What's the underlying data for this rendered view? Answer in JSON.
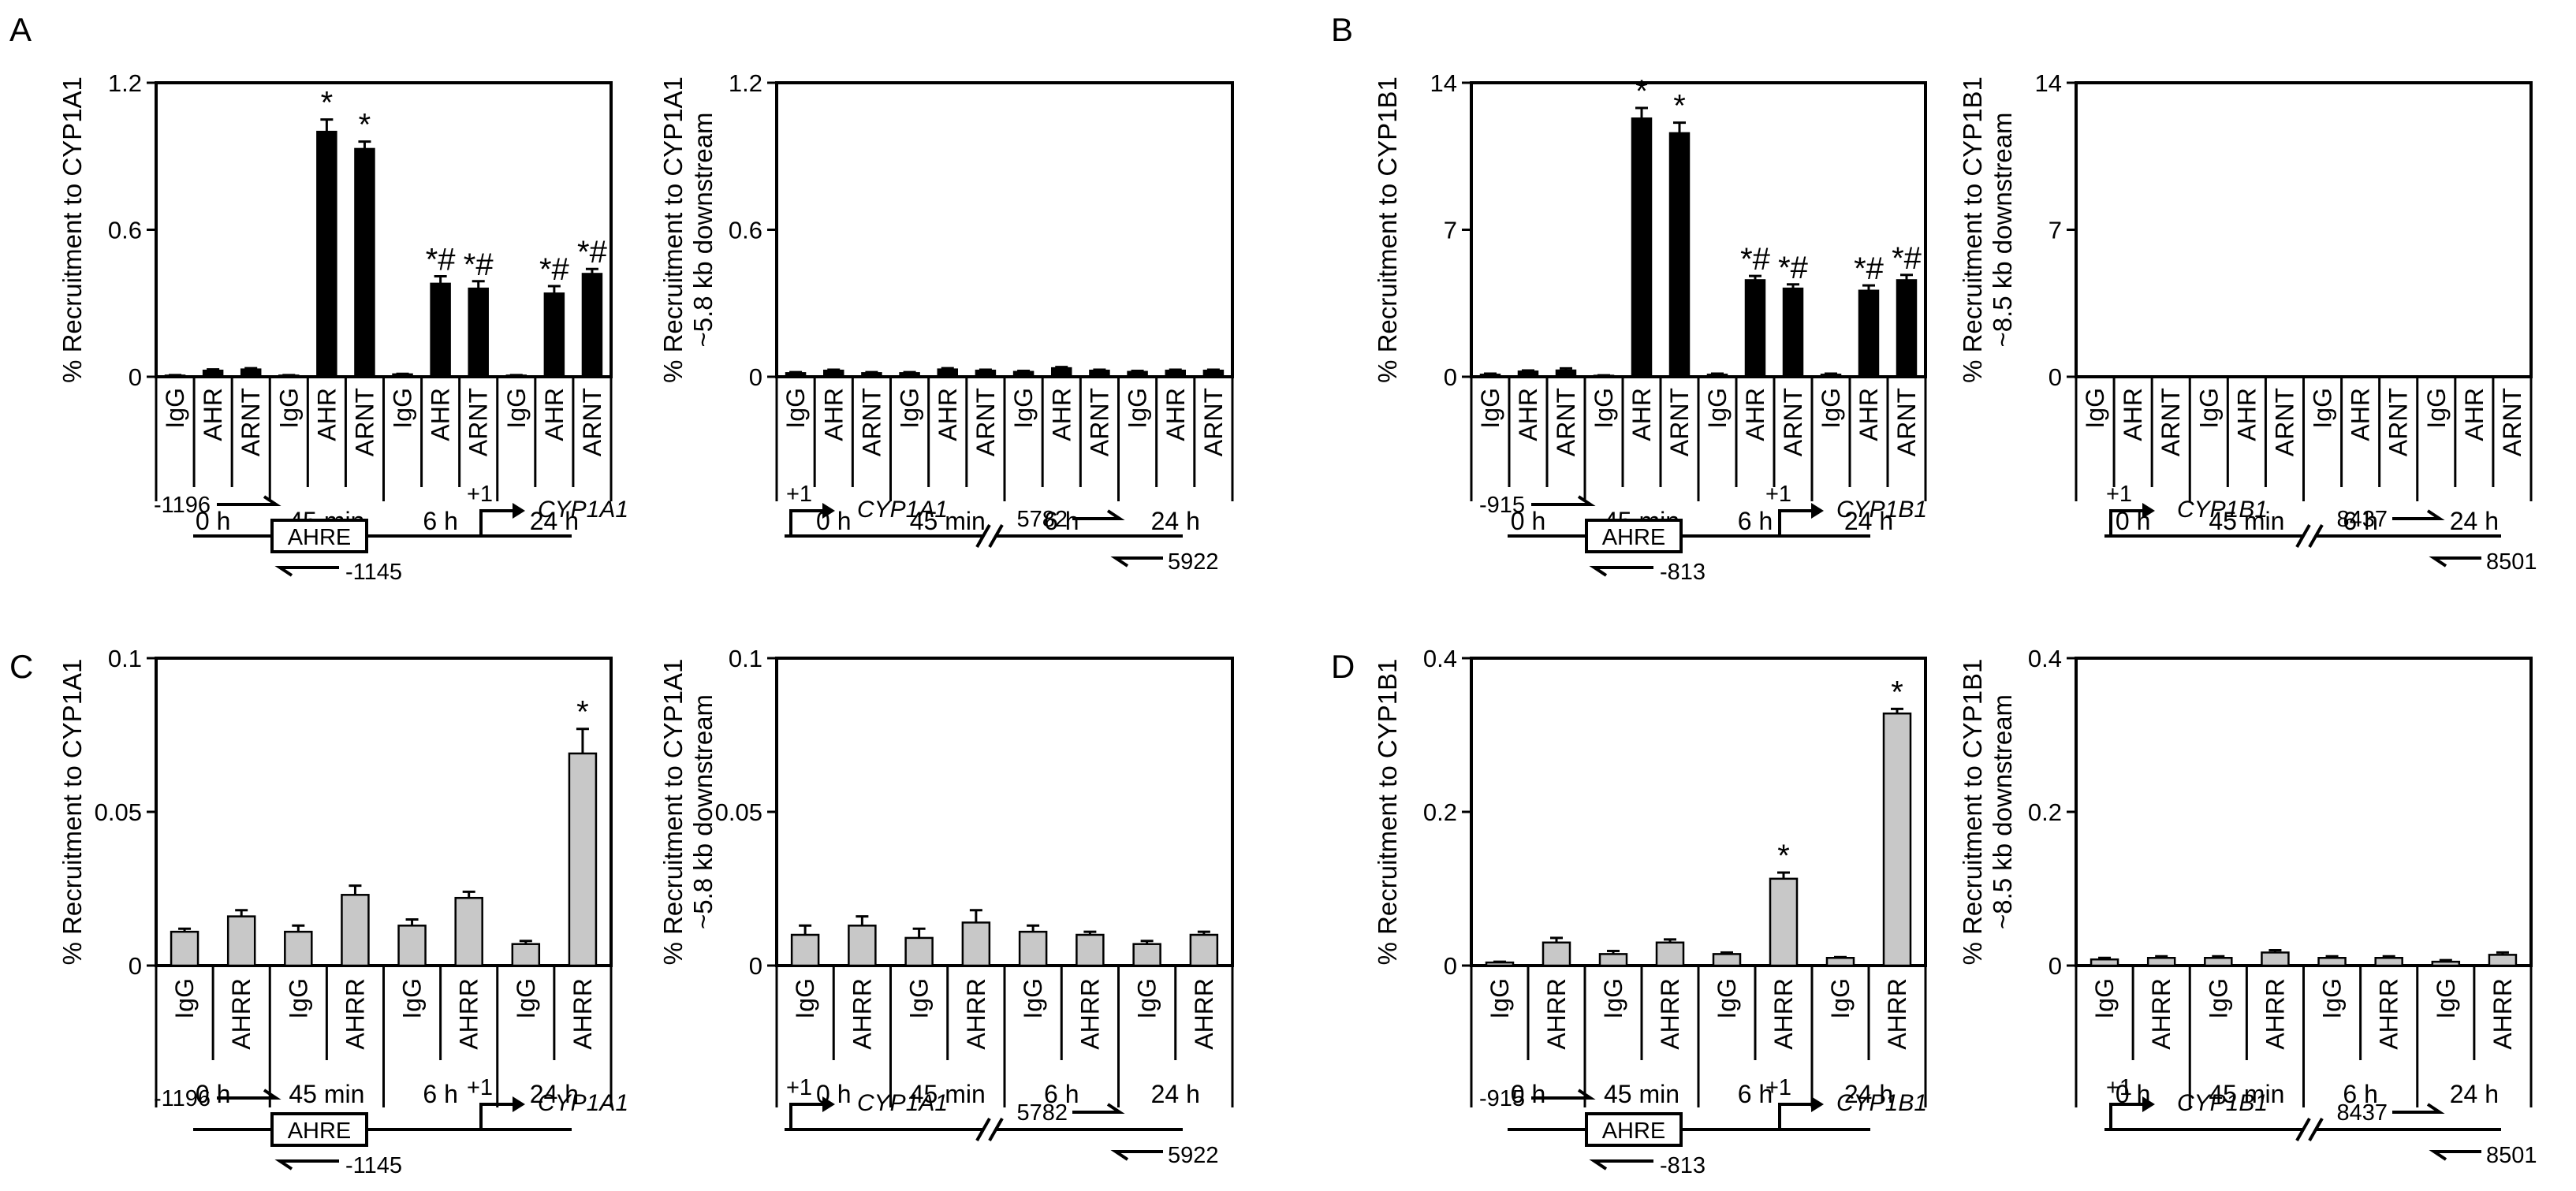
{
  "panels": [
    {
      "letter": "A",
      "key": "A"
    },
    {
      "letter": "B",
      "key": "B"
    },
    {
      "letter": "C",
      "key": "C"
    },
    {
      "letter": "D",
      "key": "D"
    }
  ],
  "chart_data": [
    {
      "id": "A1",
      "type": "bar",
      "panel": "A",
      "ylabel": "% Recruitment to CYP1A1",
      "ylim": [
        0,
        1.2
      ],
      "yticks": [
        0,
        0.6,
        1.2
      ],
      "ytick_labels": [
        "0",
        "0.6",
        "1.2"
      ],
      "groups": [
        "0 h",
        "45 min",
        "6 h",
        "24 h"
      ],
      "categories": [
        "IgG",
        "AHR",
        "ARNT"
      ],
      "values": [
        [
          0.005,
          0.025,
          0.03
        ],
        [
          0.005,
          1.0,
          0.93
        ],
        [
          0.01,
          0.38,
          0.36
        ],
        [
          0.005,
          0.34,
          0.42
        ]
      ],
      "errors": [
        [
          0.002,
          0.005,
          0.005
        ],
        [
          0.002,
          0.05,
          0.03
        ],
        [
          0.002,
          0.03,
          0.03
        ],
        [
          0.002,
          0.03,
          0.02
        ]
      ],
      "annotations": [
        [
          "",
          "",
          ""
        ],
        [
          "",
          "*",
          "*"
        ],
        [
          "",
          "*#",
          "*#"
        ],
        [
          "",
          "*#",
          "*#"
        ]
      ],
      "bar_color": "#000000",
      "diagram": {
        "primer_fwd": "-1196",
        "element": "AHRE",
        "primer_rev": "-1145",
        "tss": "+1",
        "gene": "CYP1A1"
      }
    },
    {
      "id": "A2",
      "type": "bar",
      "panel": "A",
      "ylabel": "% Recruitment to CYP1A1",
      "ylabel2": "~5.8 kb downstream",
      "ylim": [
        0,
        1.2
      ],
      "yticks": [
        0,
        0.6,
        1.2
      ],
      "ytick_labels": [
        "0",
        "0.6",
        "1.2"
      ],
      "groups": [
        "0 h",
        "45 min",
        "6 h",
        "24 h"
      ],
      "categories": [
        "IgG",
        "AHR",
        "ARNT"
      ],
      "values": [
        [
          0.015,
          0.025,
          0.015
        ],
        [
          0.015,
          0.03,
          0.025
        ],
        [
          0.02,
          0.035,
          0.025
        ],
        [
          0.02,
          0.025,
          0.025
        ]
      ],
      "errors": [
        [
          0.004,
          0.004,
          0.004
        ],
        [
          0.004,
          0.005,
          0.004
        ],
        [
          0.004,
          0.005,
          0.004
        ],
        [
          0.004,
          0.004,
          0.004
        ]
      ],
      "annotations": [
        [
          "",
          "",
          ""
        ],
        [
          "",
          "",
          ""
        ],
        [
          "",
          "",
          ""
        ],
        [
          "",
          "",
          ""
        ]
      ],
      "bar_color": "#000000",
      "diagram": {
        "tss": "+1",
        "gene": "CYP1A1",
        "primer_fwd": "5782",
        "primer_rev": "5922"
      }
    },
    {
      "id": "B1",
      "type": "bar",
      "panel": "B",
      "ylabel": "% Recruitment to CYP1B1",
      "ylim": [
        0,
        14
      ],
      "yticks": [
        0,
        7,
        14
      ],
      "ytick_labels": [
        "0",
        "7",
        "14"
      ],
      "groups": [
        "0 h",
        "45 min",
        "6 h",
        "24 h"
      ],
      "categories": [
        "IgG",
        "AHR",
        "ARNT"
      ],
      "values": [
        [
          0.1,
          0.25,
          0.3
        ],
        [
          0.05,
          12.3,
          11.6
        ],
        [
          0.1,
          4.6,
          4.2
        ],
        [
          0.1,
          4.1,
          4.6
        ]
      ],
      "errors": [
        [
          0.05,
          0.05,
          0.1
        ],
        [
          0.02,
          0.5,
          0.5
        ],
        [
          0.05,
          0.2,
          0.2
        ],
        [
          0.05,
          0.25,
          0.25
        ]
      ],
      "annotations": [
        [
          "",
          "",
          ""
        ],
        [
          "",
          "*",
          "*"
        ],
        [
          "",
          "*#",
          "*#"
        ],
        [
          "",
          "*#",
          "*#"
        ]
      ],
      "bar_color": "#000000",
      "diagram": {
        "primer_fwd": "-915",
        "element": "AHRE",
        "primer_rev": "-813",
        "tss": "+1",
        "gene": "CYP1B1"
      }
    },
    {
      "id": "B2",
      "type": "bar",
      "panel": "B",
      "ylabel": "% Recruitment to CYP1B1",
      "ylabel2": "~8.5 kb downstream",
      "ylim": [
        0,
        14
      ],
      "yticks": [
        0,
        7,
        14
      ],
      "ytick_labels": [
        "0",
        "7",
        "14"
      ],
      "groups": [
        "0 h",
        "45 min",
        "6 h",
        "24 h"
      ],
      "categories": [
        "IgG",
        "AHR",
        "ARNT"
      ],
      "values": [
        [
          0,
          0,
          0
        ],
        [
          0,
          0,
          0
        ],
        [
          0,
          0,
          0
        ],
        [
          0,
          0,
          0
        ]
      ],
      "errors": [
        [
          0,
          0,
          0
        ],
        [
          0,
          0,
          0
        ],
        [
          0,
          0,
          0
        ],
        [
          0,
          0,
          0
        ]
      ],
      "annotations": [
        [
          "",
          "",
          ""
        ],
        [
          "",
          "",
          ""
        ],
        [
          "",
          "",
          ""
        ],
        [
          "",
          "",
          ""
        ]
      ],
      "bar_color": "#000000",
      "diagram": {
        "tss": "+1",
        "gene": "CYP1B1",
        "primer_fwd": "8437",
        "primer_rev": "8501"
      }
    },
    {
      "id": "C1",
      "type": "bar",
      "panel": "C",
      "ylabel": "% Recruitment to CYP1A1",
      "ylim": [
        0,
        0.1
      ],
      "yticks": [
        0,
        0.05,
        0.1
      ],
      "ytick_labels": [
        "0",
        "0.05",
        "0.1"
      ],
      "groups": [
        "0 h",
        "45 min",
        "6 h",
        "24 h"
      ],
      "categories": [
        "IgG",
        "AHRR"
      ],
      "values": [
        [
          0.011,
          0.016
        ],
        [
          0.011,
          0.023
        ],
        [
          0.013,
          0.022
        ],
        [
          0.007,
          0.069
        ]
      ],
      "errors": [
        [
          0.001,
          0.002
        ],
        [
          0.002,
          0.003
        ],
        [
          0.002,
          0.002
        ],
        [
          0.001,
          0.008
        ]
      ],
      "annotations": [
        [
          "",
          ""
        ],
        [
          "",
          ""
        ],
        [
          "",
          ""
        ],
        [
          "",
          "*"
        ]
      ],
      "bar_color": "#c8c8c8",
      "diagram": {
        "primer_fwd": "-1196",
        "element": "AHRE",
        "primer_rev": "-1145",
        "tss": "+1",
        "gene": "CYP1A1"
      }
    },
    {
      "id": "C2",
      "type": "bar",
      "panel": "C",
      "ylabel": "% Recruitment to CYP1A1",
      "ylabel2": "~5.8 kb downstream",
      "ylim": [
        0,
        0.1
      ],
      "yticks": [
        0,
        0.05,
        0.1
      ],
      "ytick_labels": [
        "0",
        "0.05",
        "0.1"
      ],
      "groups": [
        "0 h",
        "45 min",
        "6 h",
        "24 h"
      ],
      "categories": [
        "IgG",
        "AHRR"
      ],
      "values": [
        [
          0.01,
          0.013
        ],
        [
          0.009,
          0.014
        ],
        [
          0.011,
          0.01
        ],
        [
          0.007,
          0.01
        ]
      ],
      "errors": [
        [
          0.003,
          0.003
        ],
        [
          0.003,
          0.004
        ],
        [
          0.002,
          0.001
        ],
        [
          0.001,
          0.001
        ]
      ],
      "annotations": [
        [
          "",
          ""
        ],
        [
          "",
          ""
        ],
        [
          "",
          ""
        ],
        [
          "",
          ""
        ]
      ],
      "bar_color": "#c8c8c8",
      "diagram": {
        "tss": "+1",
        "gene": "CYP1A1",
        "primer_fwd": "5782",
        "primer_rev": "5922"
      }
    },
    {
      "id": "D1",
      "type": "bar",
      "panel": "D",
      "ylabel": "% Recruitment to CYP1B1",
      "ylim": [
        0,
        0.4
      ],
      "yticks": [
        0,
        0.2,
        0.4
      ],
      "ytick_labels": [
        "0",
        "0.2",
        "0.4"
      ],
      "groups": [
        "0 h",
        "45 min",
        "6 h",
        "24 h"
      ],
      "categories": [
        "IgG",
        "AHRR"
      ],
      "values": [
        [
          0.004,
          0.03
        ],
        [
          0.015,
          0.03
        ],
        [
          0.015,
          0.113
        ],
        [
          0.01,
          0.328
        ]
      ],
      "errors": [
        [
          0.001,
          0.006
        ],
        [
          0.004,
          0.004
        ],
        [
          0.002,
          0.008
        ],
        [
          0.001,
          0.006
        ]
      ],
      "annotations": [
        [
          "",
          ""
        ],
        [
          "",
          ""
        ],
        [
          "",
          "*"
        ],
        [
          "",
          "*"
        ]
      ],
      "bar_color": "#c8c8c8",
      "diagram": {
        "primer_fwd": "-915",
        "element": "AHRE",
        "primer_rev": "-813",
        "tss": "+1",
        "gene": "CYP1B1"
      }
    },
    {
      "id": "D2",
      "type": "bar",
      "panel": "D",
      "ylabel": "% Recruitment to CYP1B1",
      "ylabel2": "~8.5 kb downstream",
      "ylim": [
        0,
        0.4
      ],
      "yticks": [
        0,
        0.2,
        0.4
      ],
      "ytick_labels": [
        "0",
        "0.2",
        "0.4"
      ],
      "groups": [
        "0 h",
        "45 min",
        "6 h",
        "24 h"
      ],
      "categories": [
        "IgG",
        "AHRR"
      ],
      "values": [
        [
          0.008,
          0.01
        ],
        [
          0.01,
          0.017
        ],
        [
          0.01,
          0.01
        ],
        [
          0.005,
          0.014
        ]
      ],
      "errors": [
        [
          0.002,
          0.002
        ],
        [
          0.002,
          0.003
        ],
        [
          0.002,
          0.002
        ],
        [
          0.002,
          0.003
        ]
      ],
      "annotations": [
        [
          "",
          ""
        ],
        [
          "",
          ""
        ],
        [
          "",
          ""
        ],
        [
          "",
          ""
        ]
      ],
      "bar_color": "#c8c8c8",
      "diagram": {
        "tss": "+1",
        "gene": "CYP1B1",
        "primer_fwd": "8437",
        "primer_rev": "8501"
      }
    }
  ]
}
